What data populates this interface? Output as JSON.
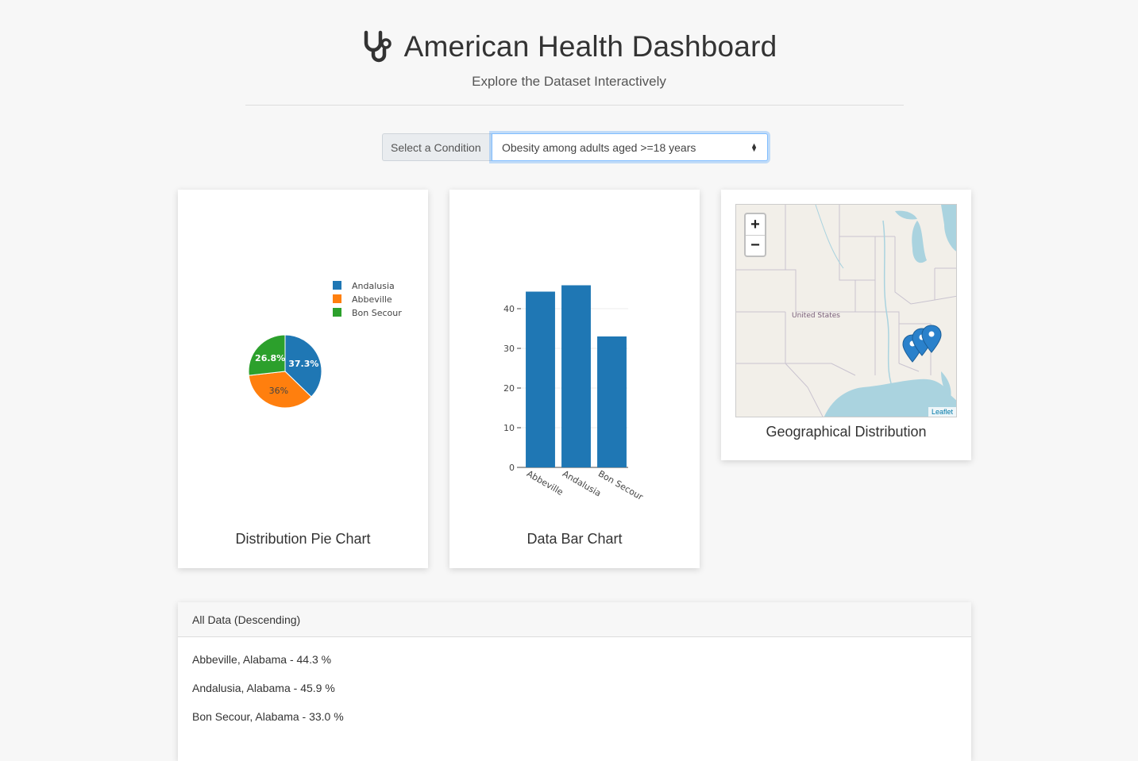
{
  "header": {
    "title": "American Health Dashboard",
    "subtitle": "Explore the Dataset Interactively",
    "icon": "stethoscope-icon"
  },
  "selector": {
    "label": "Select a Condition",
    "value": "Obesity among adults aged >=18 years"
  },
  "pie_card": {
    "caption": "Distribution Pie Chart"
  },
  "bar_card": {
    "caption": "Data Bar Chart"
  },
  "map_card": {
    "caption": "Geographical Distribution",
    "zoom_in": "+",
    "zoom_out": "−",
    "map_label": "United States",
    "attribution": "Leaflet"
  },
  "table": {
    "heading": "All Data (Descending)",
    "rows": [
      "Abbeville, Alabama - 44.3 %",
      "Andalusia, Alabama - 45.9 %",
      "Bon Secour, Alabama - 33.0 %"
    ]
  },
  "chart_data": [
    {
      "type": "pie",
      "categories": [
        "Andalusia",
        "Abbeville",
        "Bon Secour"
      ],
      "values": [
        45.9,
        44.3,
        33.0
      ],
      "labels": [
        "37.3%",
        "36%",
        "26.8%"
      ],
      "colors": [
        "#1f77b4",
        "#ff7f0e",
        "#2ca02c"
      ],
      "legend": "top-right"
    },
    {
      "type": "bar",
      "categories": [
        "Abbeville",
        "Andalusia",
        "Bon Secour"
      ],
      "values": [
        44.3,
        45.9,
        33.0
      ],
      "ylim": [
        0,
        46
      ],
      "yticks": [
        0,
        10,
        20,
        30,
        40
      ],
      "color": "#1f77b4",
      "grid": true
    }
  ]
}
